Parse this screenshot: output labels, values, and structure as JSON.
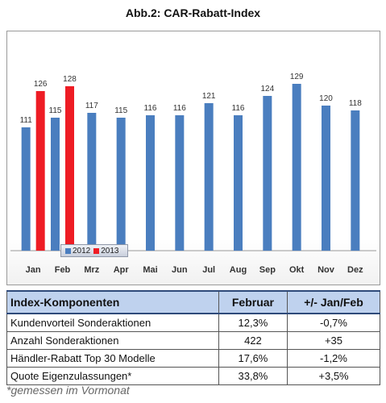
{
  "title": "Abb.2: CAR-Rabatt-Index",
  "colors": {
    "series_2012": "#4a7ebf",
    "series_2013": "#ee1c24"
  },
  "chart_data": {
    "type": "bar",
    "categories": [
      "Jan",
      "Feb",
      "Mrz",
      "Apr",
      "Mai",
      "Jun",
      "Jul",
      "Aug",
      "Sep",
      "Okt",
      "Nov",
      "Dez"
    ],
    "series": [
      {
        "name": "2012",
        "values": [
          111,
          115,
          117,
          115,
          116,
          116,
          121,
          116,
          124,
          129,
          120,
          118
        ]
      },
      {
        "name": "2013",
        "values": [
          126,
          128,
          null,
          null,
          null,
          null,
          null,
          null,
          null,
          null,
          null,
          null
        ]
      }
    ],
    "ylim": [
      60,
      130
    ],
    "grid": false,
    "legend": "bottom-left",
    "data_labels": true
  },
  "table": {
    "headers": [
      "Index-Komponenten",
      "Februar",
      "+/- Jan/Feb"
    ],
    "rows": [
      [
        "Kundenvorteil Sonderaktionen",
        "12,3%",
        "-0,7%"
      ],
      [
        "Anzahl Sonderaktionen",
        "422",
        "+35"
      ],
      [
        "Händler-Rabatt Top 30 Modelle",
        "17,6%",
        "-1,2%"
      ],
      [
        "Quote Eigenzulassungen*",
        "33,8%",
        "+3,5%"
      ]
    ]
  },
  "footnote": "*gemessen im Vormonat"
}
